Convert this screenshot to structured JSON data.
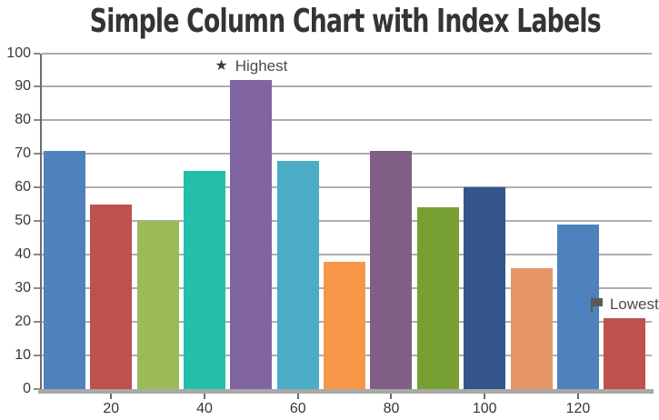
{
  "chart_data": {
    "type": "bar",
    "title": "Simple Column Chart with Index Labels",
    "x": [
      10,
      20,
      30,
      40,
      50,
      60,
      70,
      80,
      90,
      100,
      110,
      120,
      130
    ],
    "values": [
      71,
      55,
      50,
      65,
      92,
      68,
      38,
      71,
      54,
      60,
      36,
      49,
      21
    ],
    "bar_colors": [
      "#4F81BC",
      "#C0504E",
      "#9BBB58",
      "#23BFAA",
      "#8064A2",
      "#4AACC5",
      "#F79647",
      "#7F6084",
      "#77A033",
      "#33558B",
      "#E59566",
      "#4F81BC",
      "#C0504E"
    ],
    "xlabel": "",
    "ylabel": "",
    "ylim": [
      0,
      100
    ],
    "ytick_step": 10,
    "ytick_labels": [
      "0",
      "10",
      "20",
      "30",
      "40",
      "50",
      "60",
      "70",
      "80",
      "90",
      "100"
    ],
    "xtick_values": [
      20,
      40,
      60,
      80,
      100,
      120
    ],
    "xtick_labels": [
      "20",
      "40",
      "60",
      "80",
      "100",
      "120"
    ],
    "grid": true,
    "legend_position": "none",
    "annotations": [
      {
        "x": 50,
        "y": 92,
        "icon": "star-icon",
        "glyph": "★",
        "label": "Highest"
      },
      {
        "x": 130,
        "y": 21,
        "icon": "flag-icon",
        "glyph": "⚑",
        "label": "Lowest"
      }
    ],
    "style_colors": {
      "grid": "#aeaeae",
      "x_axis_line": "#a9a9a9",
      "y_axis_line": "#6e6e6e",
      "tick_label": "#373737",
      "title": "#343434",
      "annotation_text": "#4b4b4b"
    }
  }
}
